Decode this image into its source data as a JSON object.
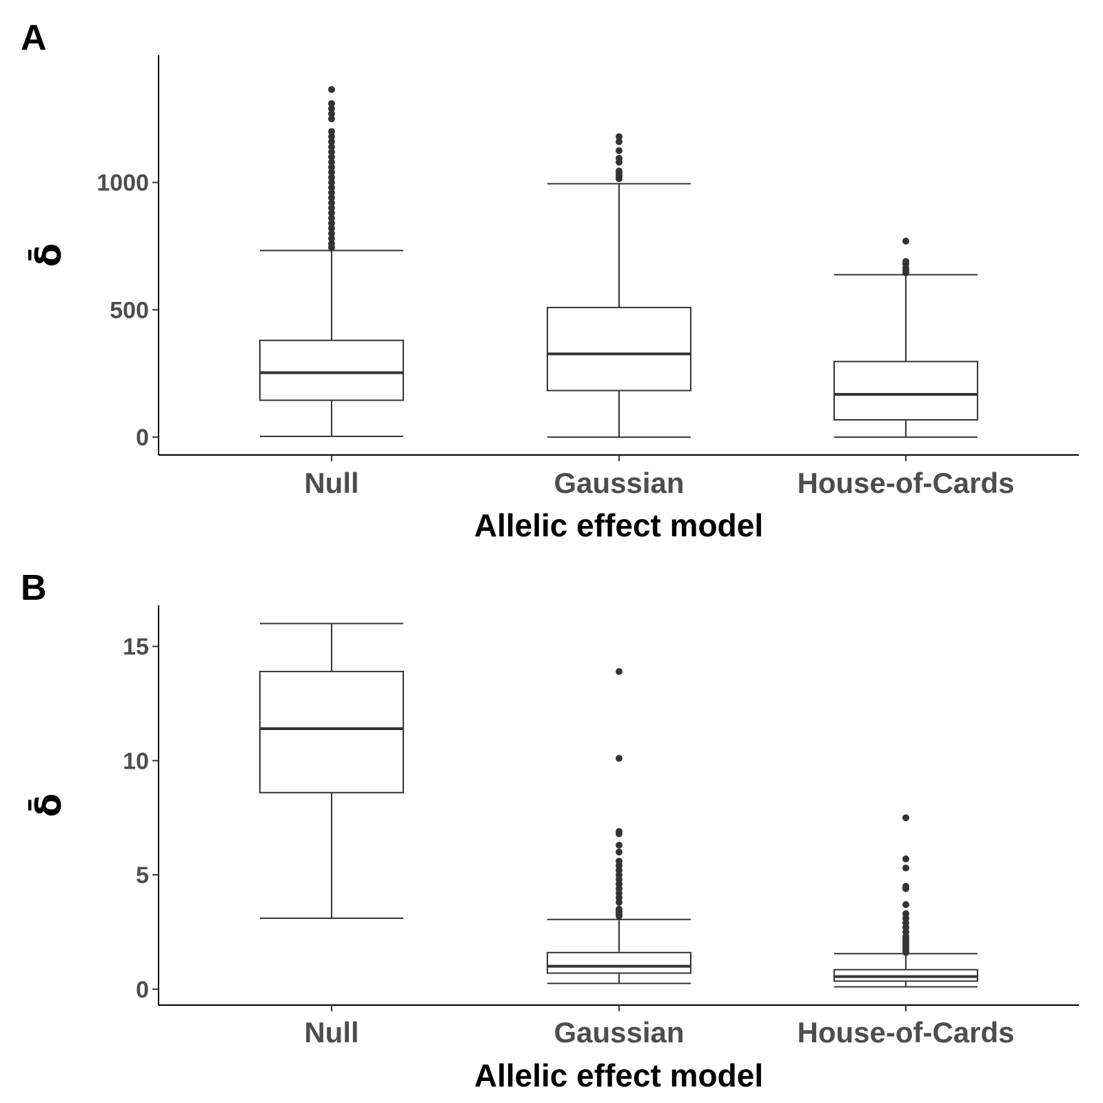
{
  "chart_data": [
    {
      "panel": "A",
      "type": "boxplot",
      "xlabel": "Allelic effect model",
      "ylabel": "δ̄",
      "categories": [
        "Null",
        "Gaussian",
        "House-of-Cards"
      ],
      "y_ticks": [
        0,
        500,
        1000
      ],
      "ylim": [
        -70,
        1500
      ],
      "boxes": [
        {
          "category": "Null",
          "whisker_low": 3,
          "q1": 145,
          "median": 253,
          "q3": 380,
          "whisker_high": 733,
          "outliers": [
            745,
            760,
            780,
            800,
            820,
            840,
            860,
            880,
            900,
            920,
            940,
            960,
            980,
            1000,
            1020,
            1040,
            1060,
            1080,
            1100,
            1120,
            1140,
            1160,
            1180,
            1200,
            1250,
            1270,
            1290,
            1310,
            1365
          ]
        },
        {
          "category": "Gaussian",
          "whisker_low": 0,
          "q1": 183,
          "median": 327,
          "q3": 509,
          "whisker_high": 995,
          "outliers": [
            1015,
            1025,
            1035,
            1045,
            1080,
            1095,
            1125,
            1160,
            1180
          ]
        },
        {
          "category": "House-of-Cards",
          "whisker_low": 0,
          "q1": 68,
          "median": 168,
          "q3": 297,
          "whisker_high": 638,
          "outliers": [
            645,
            655,
            665,
            680,
            690,
            770
          ]
        }
      ]
    },
    {
      "panel": "B",
      "type": "boxplot",
      "xlabel": "Allelic effect model",
      "ylabel": "δ̄",
      "categories": [
        "Null",
        "Gaussian",
        "House-of-Cards"
      ],
      "y_ticks": [
        0,
        5,
        10,
        15
      ],
      "ylim": [
        -0.7,
        16.8
      ],
      "boxes": [
        {
          "category": "Null",
          "whisker_low": 3.1,
          "q1": 8.6,
          "median": 11.4,
          "q3": 13.9,
          "whisker_high": 16.0,
          "outliers": []
        },
        {
          "category": "Gaussian",
          "whisker_low": 0.25,
          "q1": 0.7,
          "median": 1.0,
          "q3": 1.6,
          "whisker_high": 3.05,
          "outliers": [
            3.2,
            3.3,
            3.4,
            3.5,
            3.8,
            4.0,
            4.2,
            4.4,
            4.6,
            4.8,
            5.0,
            5.2,
            5.4,
            5.6,
            6.0,
            6.3,
            6.8,
            6.9,
            10.1,
            13.9
          ]
        },
        {
          "category": "House-of-Cards",
          "whisker_low": 0.1,
          "q1": 0.35,
          "median": 0.55,
          "q3": 0.85,
          "whisker_high": 1.55,
          "outliers": [
            1.6,
            1.7,
            1.8,
            1.9,
            2.0,
            2.1,
            2.2,
            2.3,
            2.5,
            2.7,
            2.9,
            3.1,
            3.3,
            3.7,
            4.4,
            4.5,
            5.3,
            5.7,
            7.5
          ]
        }
      ]
    }
  ]
}
